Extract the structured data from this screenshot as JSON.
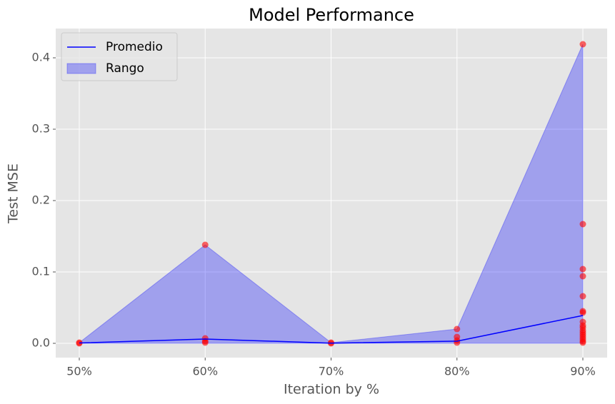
{
  "chart_data": {
    "type": "line",
    "title": "Model Performance",
    "xlabel": "Iteration by %",
    "ylabel": "Test MSE",
    "categories": [
      "50%",
      "60%",
      "70%",
      "80%",
      "90%"
    ],
    "ylim": [
      -0.02,
      0.441
    ],
    "yticks": [
      {
        "value": 0,
        "label": "0.0"
      },
      0.1,
      0.2,
      0.3,
      0.4
    ],
    "grid": true,
    "legend": "upper left",
    "series": [
      {
        "name": "Promedio",
        "type": "line",
        "color": "#0000ff",
        "values": [
          0.0005,
          0.006,
          0.0003,
          0.003,
          0.039
        ]
      },
      {
        "name": "Rango",
        "type": "area",
        "color": "#0000ff",
        "upper": [
          0.001,
          0.138,
          0.001,
          0.02,
          0.419
        ],
        "lower": [
          0,
          0,
          0,
          0,
          0
        ]
      }
    ],
    "points": {
      "color": "#ff0000",
      "x": [
        "50%",
        "50%",
        "60%",
        "60%",
        "60%",
        "60%",
        "70%",
        "70%",
        "80%",
        "80%",
        "80%",
        "80%",
        "90%",
        "90%",
        "90%",
        "90%",
        "90%",
        "90%",
        "90%",
        "90%",
        "90%",
        "90%",
        "90%",
        "90%",
        "90%",
        "90%",
        "90%",
        "90%",
        "90%"
      ],
      "values": [
        0.001,
        0,
        0.138,
        0.007,
        0.003,
        0.001,
        0.001,
        0,
        0.02,
        0.009,
        0.004,
        0.001,
        0.419,
        0.167,
        0.104,
        0.094,
        0.066,
        0.045,
        0.043,
        0.03,
        0.025,
        0.022,
        0.018,
        0.015,
        0.012,
        0.009,
        0.006,
        0.003,
        0.001
      ]
    }
  }
}
